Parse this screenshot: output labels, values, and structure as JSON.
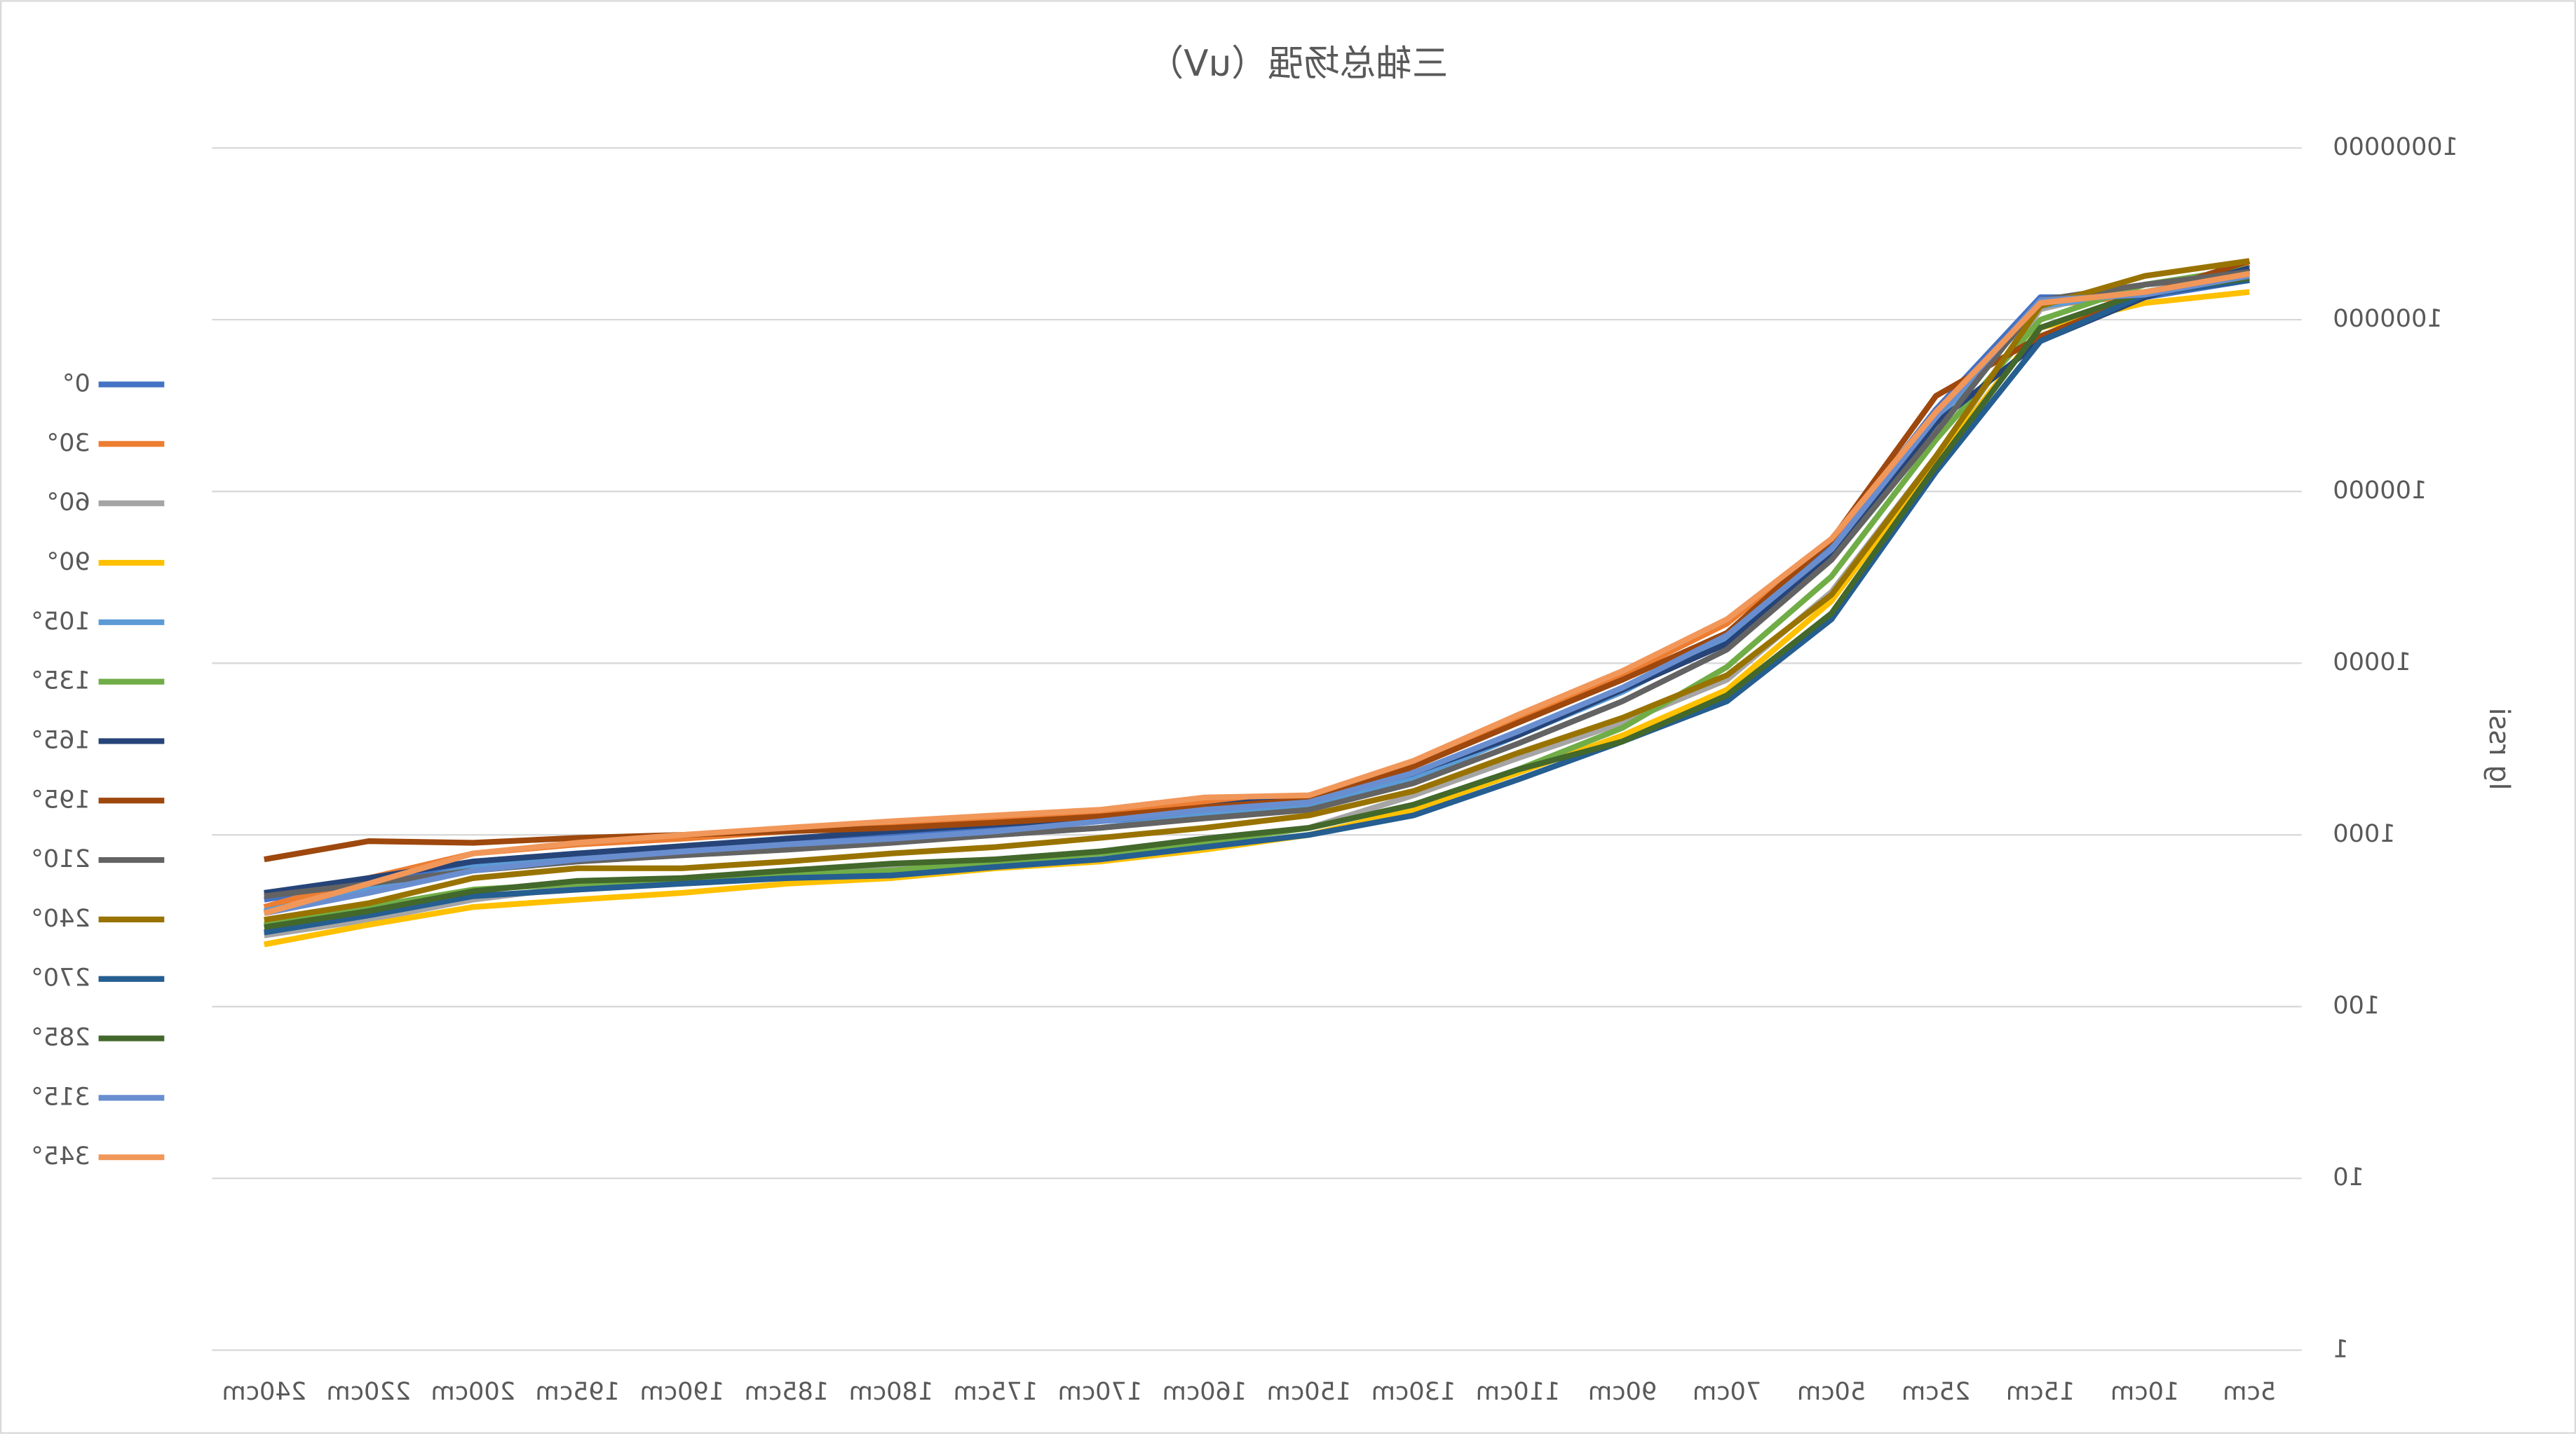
{
  "chart_data": {
    "type": "line",
    "title": "三轴总场强（uV）",
    "y_label": "lg rssi",
    "log_scale": true,
    "grid": true,
    "legend_position": "right",
    "categories": [
      "5cm",
      "10cm",
      "15cm",
      "25cm",
      "50cm",
      "70cm",
      "90cm",
      "110cm",
      "130cm",
      "150cm",
      "160cm",
      "170cm",
      "175cm",
      "180cm",
      "185cm",
      "190cm",
      "195cm",
      "200cm",
      "220cm",
      "240cm"
    ],
    "ylim": [
      1,
      10000000
    ],
    "yticks": [
      1,
      10,
      100,
      1000,
      10000,
      100000,
      1000000,
      10000000
    ],
    "series": [
      {
        "name": "0°",
        "color": "#4472c4",
        "values": [
          1700000,
          1350000,
          1350000,
          300000,
          50000,
          15000,
          7000,
          4000,
          2200,
          1500,
          1350,
          1200,
          1100,
          1000,
          900,
          850,
          780,
          700,
          520,
          420
        ]
      },
      {
        "name": "30°",
        "color": "#ed7d31",
        "values": [
          2100000,
          1400000,
          1200000,
          280000,
          52000,
          17000,
          8500,
          4800,
          2600,
          1600,
          1550,
          1350,
          1250,
          1150,
          1050,
          950,
          880,
          780,
          560,
          380
        ]
      },
      {
        "name": "60°",
        "color": "#a5a5a5",
        "values": [
          1800000,
          1600000,
          1150000,
          160000,
          26000,
          8000,
          4500,
          2800,
          1700,
          1100,
          950,
          800,
          720,
          650,
          600,
          560,
          500,
          420,
          320,
          260
        ]
      },
      {
        "name": "90°",
        "color": "#ffc000",
        "values": [
          1450000,
          1250000,
          900000,
          150000,
          23000,
          7000,
          3800,
          2300,
          1400,
          1000,
          820,
          700,
          640,
          560,
          520,
          460,
          420,
          380,
          300,
          230
        ]
      },
      {
        "name": "105°",
        "color": "#5b9bd5",
        "values": [
          1900000,
          1450000,
          1200000,
          260000,
          45000,
          14000,
          6800,
          3800,
          2100,
          1500,
          1300,
          1100,
          1000,
          940,
          860,
          800,
          740,
          650,
          480,
          360
        ]
      },
      {
        "name": "135°",
        "color": "#70ad47",
        "values": [
          2000000,
          1600000,
          1000000,
          200000,
          32000,
          9500,
          4200,
          2400,
          1500,
          1100,
          900,
          780,
          700,
          620,
          580,
          540,
          520,
          480,
          380,
          300
        ]
      },
      {
        "name": "165°",
        "color": "#264478",
        "values": [
          2000000,
          1350000,
          750000,
          250000,
          42000,
          13000,
          7000,
          3800,
          2300,
          1700,
          1450,
          1250,
          1150,
          1050,
          950,
          860,
          780,
          700,
          560,
          460
        ]
      },
      {
        "name": "195°",
        "color": "#9e480e",
        "values": [
          2200000,
          1400000,
          800000,
          360000,
          52000,
          15000,
          8000,
          4500,
          2500,
          1600,
          1450,
          1280,
          1180,
          1100,
          1050,
          1000,
          960,
          900,
          920,
          720
        ]
      },
      {
        "name": "210°",
        "color": "#636363",
        "values": [
          1900000,
          1600000,
          1300000,
          220000,
          40000,
          12000,
          6000,
          3400,
          2000,
          1400,
          1250,
          1100,
          1000,
          900,
          820,
          760,
          700,
          620,
          520,
          440
        ]
      },
      {
        "name": "240°",
        "color": "#997300",
        "values": [
          2200000,
          1800000,
          1200000,
          160000,
          25000,
          8500,
          4800,
          3000,
          1800,
          1300,
          1100,
          960,
          850,
          780,
          700,
          640,
          640,
          560,
          400,
          320
        ]
      },
      {
        "name": "270°",
        "color": "#255e91",
        "values": [
          1700000,
          1400000,
          750000,
          130000,
          18000,
          6000,
          3500,
          2100,
          1300,
          1000,
          850,
          720,
          650,
          580,
          560,
          520,
          480,
          440,
          340,
          270
        ]
      },
      {
        "name": "285°",
        "color": "#43682b",
        "values": [
          1750000,
          1450000,
          900000,
          140000,
          19500,
          6500,
          3500,
          2400,
          1500,
          1100,
          950,
          800,
          720,
          680,
          620,
          560,
          540,
          470,
          360,
          290
        ]
      },
      {
        "name": "315°",
        "color": "#698ed0",
        "values": [
          1800000,
          1400000,
          1300000,
          270000,
          46000,
          14500,
          7200,
          4000,
          2300,
          1550,
          1400,
          1200,
          1050,
          950,
          880,
          800,
          720,
          620,
          460,
          350
        ]
      },
      {
        "name": "345°",
        "color": "#f1975a",
        "values": [
          1850000,
          1450000,
          1250000,
          290000,
          53000,
          18000,
          9000,
          5000,
          2700,
          1700,
          1650,
          1400,
          1300,
          1200,
          1100,
          1000,
          900,
          780,
          520,
          350
        ]
      }
    ]
  }
}
